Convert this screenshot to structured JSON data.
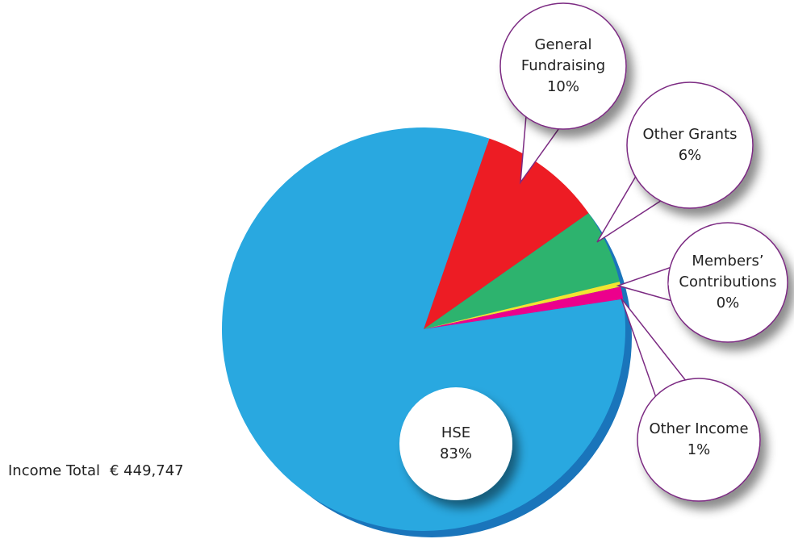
{
  "chart_data": {
    "type": "pie",
    "categories": [
      "General Fundraising",
      "Other Grants",
      "Members’ Contributions",
      "Other Income",
      "HSE"
    ],
    "values": [
      10,
      6,
      0.4,
      1,
      83
    ],
    "value_labels": [
      "10%",
      "6%",
      "0%",
      "1%",
      "83%"
    ],
    "colors": [
      "#ed1c24",
      "#2db36e",
      "#f2e530",
      "#ec008c",
      "#29a8e0"
    ],
    "annotations": {
      "total_label": "Income Total",
      "total_value": "€ 449,747"
    }
  }
}
